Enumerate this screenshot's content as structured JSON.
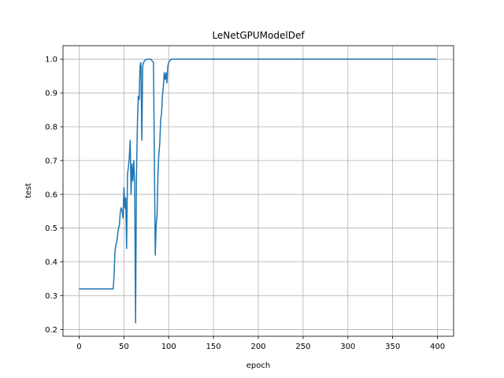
{
  "chart_data": {
    "type": "line",
    "title": "LeNetGPUModelDef",
    "xlabel": "epoch",
    "ylabel": "test",
    "xlim": [
      -18,
      418
    ],
    "ylim": [
      0.18,
      1.04
    ],
    "xticks": [
      0,
      50,
      100,
      150,
      200,
      250,
      300,
      350,
      400
    ],
    "yticks": [
      0.2,
      0.3,
      0.4,
      0.5,
      0.6,
      0.7,
      0.8,
      0.9,
      1.0
    ],
    "ytick_labels": [
      "0.2",
      "0.3",
      "0.4",
      "0.5",
      "0.6",
      "0.7",
      "0.8",
      "0.9",
      "1.0"
    ],
    "grid": true,
    "line_color": "#1f77b4",
    "series": [
      {
        "x": [
          0,
          38,
          39,
          40,
          41,
          42,
          43,
          44,
          45,
          46,
          47,
          48,
          49,
          50,
          51,
          52,
          53,
          54,
          55,
          56,
          57,
          58,
          59,
          60,
          61,
          62,
          63,
          64,
          65,
          66,
          67,
          68,
          69,
          70,
          71,
          72,
          73,
          74,
          76,
          78,
          80,
          83,
          85,
          86,
          87,
          88,
          89,
          90,
          91,
          92,
          93,
          94,
          95,
          96,
          97,
          98,
          99,
          100,
          101,
          102,
          103,
          104,
          106,
          110,
          150,
          200,
          250,
          300,
          350,
          399
        ],
        "y": [
          0.32,
          0.32,
          0.36,
          0.43,
          0.45,
          0.46,
          0.48,
          0.5,
          0.51,
          0.55,
          0.56,
          0.55,
          0.53,
          0.62,
          0.56,
          0.59,
          0.44,
          0.66,
          0.68,
          0.71,
          0.76,
          0.6,
          0.69,
          0.64,
          0.7,
          0.63,
          0.22,
          0.65,
          0.8,
          0.89,
          0.88,
          0.98,
          0.99,
          0.76,
          0.98,
          0.99,
          0.995,
          0.998,
          1.0,
          1.0,
          1.0,
          0.99,
          0.42,
          0.51,
          0.54,
          0.66,
          0.72,
          0.75,
          0.82,
          0.84,
          0.89,
          0.92,
          0.96,
          0.94,
          0.96,
          0.93,
          0.98,
          0.99,
          0.995,
          0.998,
          1.0,
          1.0,
          1.0,
          1.0,
          1.0,
          1.0,
          1.0,
          1.0,
          1.0,
          1.0
        ]
      }
    ]
  }
}
